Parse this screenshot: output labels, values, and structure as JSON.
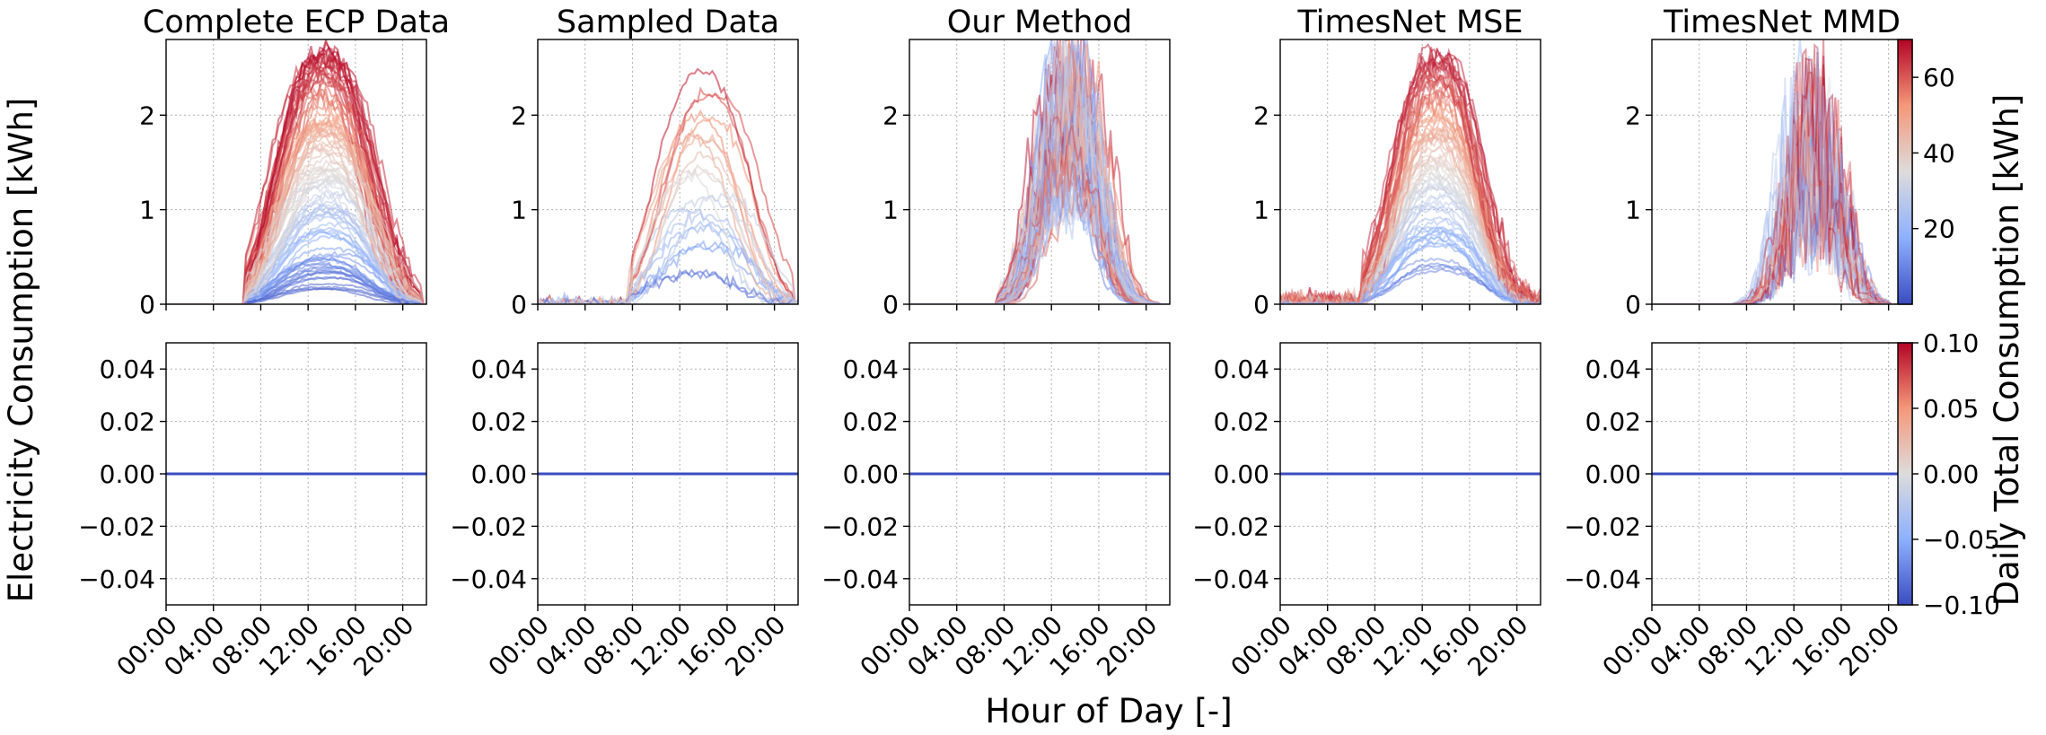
{
  "chart_data": {
    "type": "line",
    "ylabel": "Electricity Consumption [kWh]",
    "xlabel": "Hour of Day [-]",
    "x_ticks": [
      "00:00",
      "04:00",
      "08:00",
      "12:00",
      "16:00",
      "20:00"
    ],
    "x_range_hours": [
      0,
      22
    ],
    "grid": true,
    "panels": [
      {
        "title": "Complete ECP Data",
        "style": "full"
      },
      {
        "title": "Sampled Data",
        "style": "sampled"
      },
      {
        "title": "Our Method",
        "style": "ours"
      },
      {
        "title": "TimesNet MSE",
        "style": "mse"
      },
      {
        "title": "TimesNet MMD",
        "style": "mmd"
      }
    ],
    "top_row": {
      "ylim": [
        0,
        2.8
      ],
      "y_ticks": [
        "0",
        "1",
        "2"
      ],
      "description": "Daily solar-shaped electricity consumption profiles, lines colored by daily total consumption"
    },
    "bottom_row": {
      "ylim": [
        -0.05,
        0.05
      ],
      "y_ticks": [
        "0.04",
        "0.02",
        "0.00",
        "−0.02",
        "−0.04"
      ],
      "value": 0.0
    },
    "colorbars": [
      {
        "label": "Daily Total Consumption [kWh]",
        "ticks": [
          "60",
          "40",
          "20"
        ],
        "range": [
          0,
          70
        ],
        "colormap": "coolwarm"
      },
      {
        "ticks": [
          "0.10",
          "0.05",
          "0.00",
          "−0.05",
          "−0.10"
        ],
        "range": [
          -0.1,
          0.1
        ],
        "colormap": "coolwarm"
      }
    ]
  }
}
